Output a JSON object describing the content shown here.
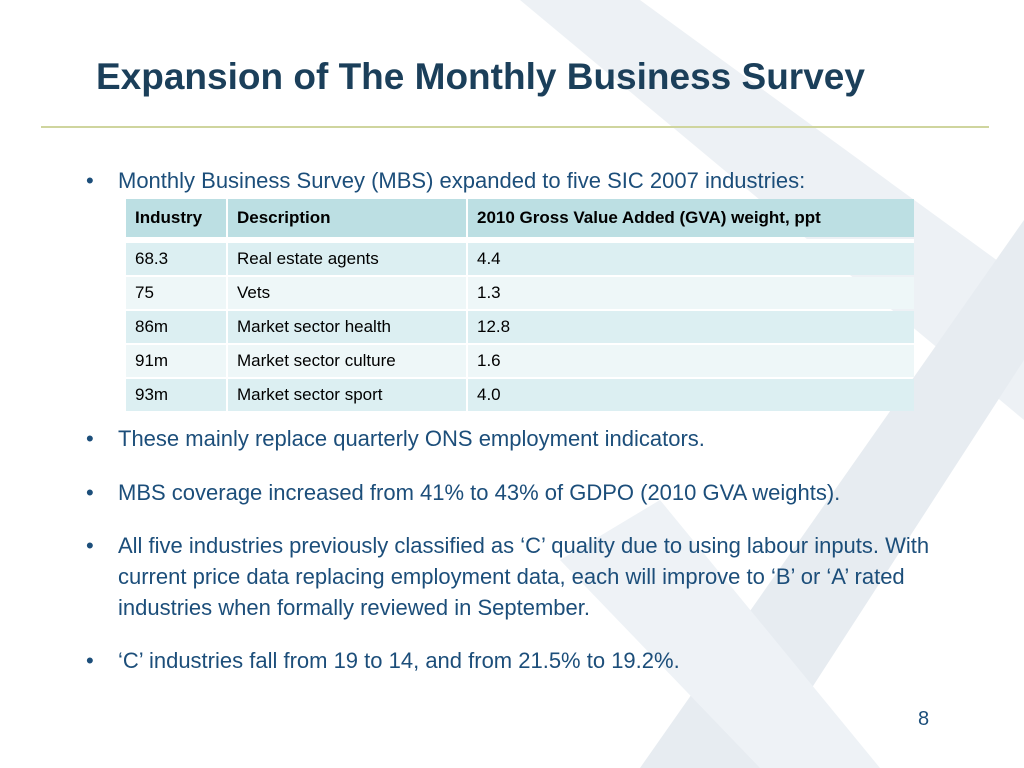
{
  "slide": {
    "title": "Expansion of The Monthly Business Survey",
    "page_number": "8"
  },
  "bullets": [
    "Monthly Business Survey (MBS) expanded to five SIC 2007 industries:",
    "These mainly replace quarterly ONS employment indicators.",
    "MBS coverage increased from 41% to 43% of GDPO (2010 GVA weights).",
    "All five industries previously classified as ‘C’ quality due to using labour inputs. With current price data replacing employment data, each will improve to ‘B’ or ‘A’ rated industries when formally reviewed in September.",
    "‘C’ industries fall from 19 to 14, and from 21.5% to 19.2%."
  ],
  "bullet_symbol": "•",
  "table": {
    "headers": [
      "Industry",
      "Description",
      "2010 Gross Value Added (GVA) weight, ppt"
    ],
    "rows": [
      [
        "68.3",
        "Real estate agents",
        "4.4"
      ],
      [
        "75",
        "Vets",
        "1.3"
      ],
      [
        "86m",
        "Market sector health",
        "12.8"
      ],
      [
        "91m",
        "Market sector culture",
        "1.6"
      ],
      [
        "93m",
        "Market sector sport",
        "4.0"
      ]
    ]
  },
  "colors": {
    "title": "#1b3f5a",
    "body_text": "#1c4e7a",
    "rule": "#cfd59e",
    "table_header": "#bcdfe3",
    "table_row_odd": "#dceff2",
    "table_row_even": "#eef7f8",
    "background_mark": "#e9eef3"
  }
}
